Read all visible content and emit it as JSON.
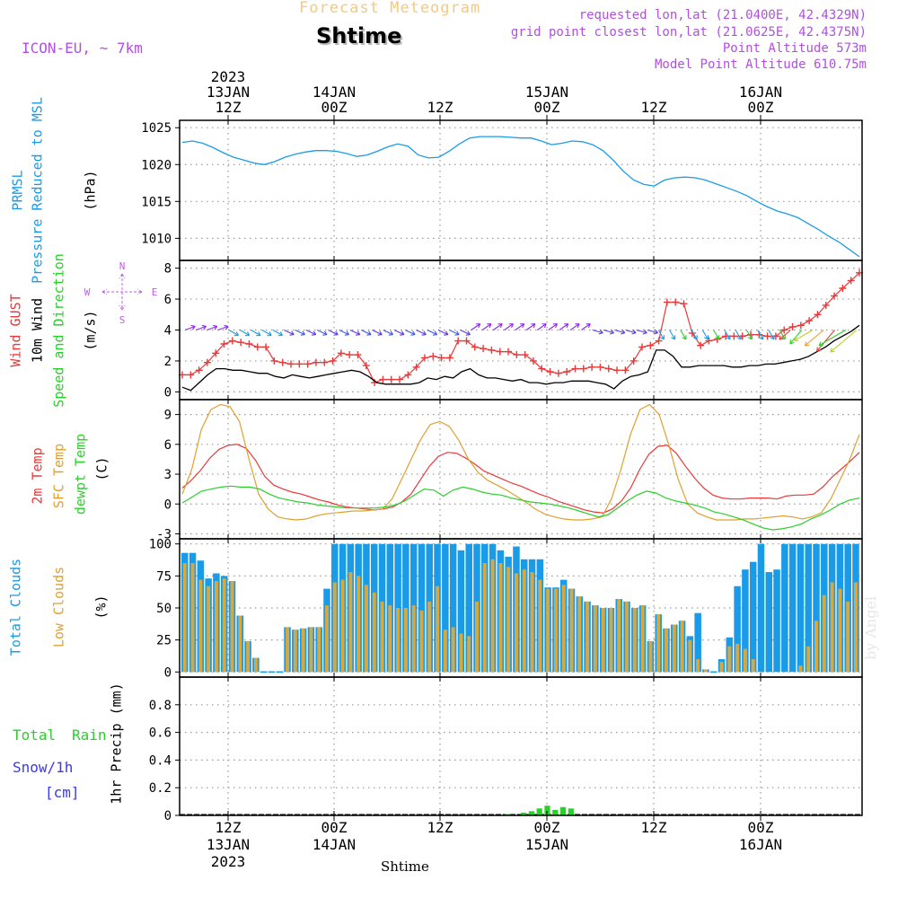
{
  "header": {
    "super_title": "Forecast Meteogram",
    "location_title": "Shtime",
    "model": "ICON-EU, ~ 7km",
    "requested": "requested lon,lat (21.0400E, 42.4329N)",
    "closest": "grid point closest lon,lat (21.0625E, 42.4375N)",
    "point_altitude": "Point Altitude 573m",
    "model_altitude": "Model Point Altitude 610.75m",
    "watermark": "by Angel",
    "footer_location": "Shtime"
  },
  "time_axis": {
    "top": [
      {
        "hour": "12Z",
        "date": "13JAN",
        "year": "2023"
      },
      {
        "hour": "00Z",
        "date": "14JAN",
        "year": ""
      },
      {
        "hour": "12Z",
        "date": "",
        "year": ""
      },
      {
        "hour": "00Z",
        "date": "15JAN",
        "year": ""
      },
      {
        "hour": "12Z",
        "date": "",
        "year": ""
      },
      {
        "hour": "00Z",
        "date": "16JAN",
        "year": ""
      }
    ],
    "bottom": [
      {
        "hour": "12Z",
        "date": "13JAN",
        "year": "2023"
      },
      {
        "hour": "00Z",
        "date": "14JAN",
        "year": ""
      },
      {
        "hour": "12Z",
        "date": "",
        "year": ""
      },
      {
        "hour": "00Z",
        "date": "15JAN",
        "year": ""
      },
      {
        "hour": "12Z",
        "date": "",
        "year": ""
      },
      {
        "hour": "00Z",
        "date": "16JAN",
        "year": ""
      }
    ]
  },
  "panels": {
    "pressure": {
      "label1": "PRMSL",
      "label2": "Pressure Reduced to MSL",
      "unit": "(hPa)"
    },
    "wind": {
      "label1": "Wind GUST",
      "label2": "10m Wind",
      "label3": "Speed and Direction",
      "unit": "(m/s)",
      "compass_n": "N",
      "compass_s": "S",
      "compass_w": "W",
      "compass_e": "E"
    },
    "temp": {
      "label1": "2m Temp",
      "label2": "SFC Temp",
      "label3": "dewpt Temp",
      "unit": "(C)"
    },
    "clouds": {
      "label1": "Total Clouds",
      "label2": "Low Clouds",
      "unit": "(%)"
    },
    "precip": {
      "label1": "Total",
      "label2": "Rain",
      "label3": "Snow/1h",
      "label4": "[cm]",
      "unit": "1hr Precip (mm)"
    }
  },
  "chart_data": [
    {
      "type": "line",
      "title": "PRMSL Pressure Reduced to MSL",
      "ylabel": "(hPa)",
      "x_hours_from_13JAN_00Z": [
        6,
        78
      ],
      "ylim": [
        1007,
        1026
      ],
      "yticks": [
        "1025",
        "1020",
        "1015",
        "1010"
      ],
      "series": [
        {
          "name": "PRMSL",
          "color": "#1a9be8",
          "values": [
            1023.0,
            1023.2,
            1022.9,
            1022.3,
            1021.6,
            1021.0,
            1020.6,
            1020.2,
            1020.0,
            1020.4,
            1021.0,
            1021.4,
            1021.7,
            1021.9,
            1021.9,
            1021.8,
            1021.5,
            1021.1,
            1021.3,
            1021.8,
            1022.4,
            1022.8,
            1022.5,
            1021.3,
            1020.9,
            1021.0,
            1021.8,
            1022.8,
            1023.6,
            1023.8,
            1023.8,
            1023.8,
            1023.7,
            1023.6,
            1023.6,
            1023.2,
            1022.7,
            1022.9,
            1023.2,
            1023.1,
            1022.7,
            1021.9,
            1020.6,
            1019.1,
            1017.9,
            1017.3,
            1017.1,
            1017.9,
            1018.2,
            1018.3,
            1018.2,
            1017.9,
            1017.4,
            1016.9,
            1016.4,
            1015.8,
            1015.0,
            1014.3,
            1013.7,
            1013.3,
            1012.8,
            1012.0,
            1011.2,
            1010.3,
            1009.5,
            1008.5,
            1007.5
          ]
        }
      ]
    },
    {
      "type": "line",
      "title": "Wind GUST / 10m Wind Speed and Direction",
      "ylabel": "(m/s)",
      "ylim": [
        -0.5,
        8.5
      ],
      "yticks": [
        "8",
        "6",
        "4",
        "2",
        "0"
      ],
      "series": [
        {
          "name": "Wind GUST",
          "color": "#e83a3a",
          "values": [
            1.1,
            1.1,
            1.4,
            1.9,
            2.5,
            3.1,
            3.3,
            3.2,
            3.1,
            2.9,
            2.9,
            2.0,
            1.9,
            1.8,
            1.8,
            1.8,
            1.9,
            1.9,
            2.0,
            2.5,
            2.4,
            2.4,
            1.7,
            0.6,
            0.8,
            0.8,
            0.8,
            1.1,
            1.6,
            2.2,
            2.3,
            2.2,
            2.2,
            3.3,
            3.3,
            2.9,
            2.8,
            2.7,
            2.6,
            2.6,
            2.4,
            2.4,
            2.0,
            1.5,
            1.3,
            1.2,
            1.3,
            1.5,
            1.5,
            1.6,
            1.6,
            1.5,
            1.4,
            1.4,
            2.0,
            2.9,
            3.0,
            3.3,
            5.8,
            5.8,
            5.7,
            3.8,
            3.0,
            3.3,
            3.4,
            3.6,
            3.6,
            3.6,
            3.7,
            3.7,
            3.6,
            3.6,
            4.0,
            4.2,
            4.3,
            4.6,
            5.0,
            5.6,
            6.2,
            6.7,
            7.2,
            7.7
          ]
        },
        {
          "name": "10m Wind",
          "color": "#000000",
          "values": [
            0.3,
            0.1,
            0.6,
            1.1,
            1.5,
            1.5,
            1.4,
            1.4,
            1.3,
            1.2,
            1.2,
            1.0,
            0.9,
            1.1,
            1.0,
            0.9,
            1.0,
            1.1,
            1.2,
            1.3,
            1.4,
            1.3,
            1.0,
            0.6,
            0.5,
            0.5,
            0.5,
            0.5,
            0.6,
            0.9,
            0.8,
            1.0,
            0.9,
            1.3,
            1.5,
            1.1,
            0.9,
            0.9,
            0.8,
            0.7,
            0.8,
            0.6,
            0.6,
            0.5,
            0.6,
            0.6,
            0.7,
            0.7,
            0.7,
            0.6,
            0.5,
            0.2,
            0.7,
            1.0,
            1.1,
            1.3,
            2.7,
            2.7,
            2.3,
            1.6,
            1.6,
            1.7,
            1.7,
            1.7,
            1.7,
            1.6,
            1.6,
            1.7,
            1.7,
            1.8,
            1.8,
            1.9,
            2.0,
            2.1,
            2.3,
            2.6,
            2.9,
            3.3,
            3.6,
            3.9,
            4.3
          ]
        }
      ]
    },
    {
      "type": "line",
      "title": "2m Temp / SFC Temp / dewpt Temp",
      "ylabel": "(C)",
      "ylim": [
        -3.5,
        10.5
      ],
      "yticks": [
        "9",
        "6",
        "3",
        "0",
        "-3"
      ],
      "series": [
        {
          "name": "2m Temp",
          "color": "#e83a3a",
          "values": [
            1.6,
            2.4,
            3.4,
            4.6,
            5.5,
            5.9,
            6.0,
            5.6,
            4.4,
            2.8,
            1.9,
            1.5,
            1.2,
            1.0,
            0.7,
            0.4,
            0.2,
            -0.1,
            -0.3,
            -0.4,
            -0.5,
            -0.6,
            -0.5,
            -0.3,
            0.2,
            1.0,
            2.4,
            3.8,
            4.8,
            5.2,
            5.1,
            4.6,
            4.0,
            3.3,
            2.9,
            2.5,
            2.1,
            1.8,
            1.4,
            1.0,
            0.7,
            0.3,
            0.0,
            -0.3,
            -0.6,
            -0.8,
            -0.9,
            -0.5,
            0.3,
            1.6,
            3.5,
            5.0,
            5.8,
            5.9,
            5.1,
            3.8,
            2.6,
            1.6,
            0.9,
            0.6,
            0.5,
            0.5,
            0.6,
            0.6,
            0.6,
            0.5,
            0.8,
            0.9,
            0.9,
            1.0,
            1.7,
            2.7,
            3.5,
            4.3,
            5.2
          ]
        },
        {
          "name": "SFC Temp",
          "color": "#e0a030",
          "values": [
            1.0,
            3.5,
            7.5,
            9.5,
            10.0,
            9.8,
            8.3,
            4.5,
            1.0,
            -0.5,
            -1.3,
            -1.5,
            -1.6,
            -1.5,
            -1.2,
            -1.0,
            -0.9,
            -0.8,
            -0.7,
            -0.7,
            -0.6,
            -0.5,
            0.5,
            2.5,
            4.5,
            6.5,
            8.0,
            8.3,
            7.8,
            6.4,
            4.5,
            3.2,
            2.4,
            1.9,
            1.4,
            0.8,
            0.2,
            -0.5,
            -1.0,
            -1.3,
            -1.5,
            -1.6,
            -1.6,
            -1.5,
            -1.3,
            0.5,
            3.5,
            7.0,
            9.5,
            10.0,
            9.0,
            6.0,
            2.5,
            0.0,
            -0.9,
            -1.3,
            -1.6,
            -1.6,
            -1.6,
            -1.5,
            -1.5,
            -1.4,
            -1.3,
            -1.2,
            -1.3,
            -1.5,
            -1.3,
            -0.9,
            0.5,
            2.5,
            4.5,
            7.0
          ]
        },
        {
          "name": "dewpt Temp",
          "color": "#2ad02a",
          "values": [
            0.1,
            0.7,
            1.3,
            1.5,
            1.7,
            1.8,
            1.7,
            1.7,
            1.5,
            1.0,
            0.6,
            0.4,
            0.2,
            0.1,
            -0.1,
            -0.2,
            -0.3,
            -0.4,
            -0.4,
            -0.4,
            -0.4,
            -0.3,
            -0.1,
            0.3,
            0.9,
            1.5,
            1.4,
            0.8,
            1.4,
            1.7,
            1.5,
            1.2,
            1.0,
            0.9,
            0.6,
            0.4,
            0.2,
            0.1,
            0.0,
            -0.2,
            -0.4,
            -0.7,
            -1.0,
            -1.3,
            -1.1,
            -0.4,
            0.3,
            0.9,
            1.3,
            1.1,
            0.6,
            0.3,
            0.1,
            -0.1,
            -0.4,
            -0.8,
            -1.0,
            -1.3,
            -1.6,
            -2.0,
            -2.4,
            -2.6,
            -2.5,
            -2.3,
            -2.0,
            -1.5,
            -1.1,
            -0.6,
            0.0,
            0.4,
            0.6
          ]
        }
      ]
    },
    {
      "type": "bar",
      "title": "Total Clouds / Low Clouds",
      "ylabel": "(%)",
      "ylim": [
        -4,
        104
      ],
      "yticks": [
        "100",
        "75",
        "50",
        "25",
        "0"
      ],
      "series": [
        {
          "name": "Total Clouds",
          "color": "#1a9be8",
          "values": [
            93,
            93,
            87,
            73,
            77,
            75,
            71,
            44,
            24,
            11,
            0,
            0,
            0,
            35,
            33,
            34,
            35,
            35,
            65,
            100,
            100,
            100,
            100,
            100,
            100,
            100,
            100,
            100,
            100,
            100,
            100,
            100,
            100,
            100,
            100,
            95,
            100,
            100,
            100,
            100,
            95,
            90,
            98,
            88,
            88,
            88,
            66,
            66,
            72,
            65,
            59,
            55,
            52,
            50,
            50,
            57,
            55,
            50,
            52,
            24,
            45,
            34,
            37,
            40,
            28,
            46,
            2,
            0,
            10,
            27,
            67,
            80,
            86,
            100,
            78,
            80,
            100,
            100,
            100,
            100,
            100,
            100,
            100,
            100,
            100,
            100
          ]
        },
        {
          "name": "Low Clouds",
          "color": "#d8a840",
          "values": [
            85,
            85,
            72,
            67,
            71,
            73,
            71,
            44,
            24,
            11,
            0,
            0,
            0,
            35,
            33,
            34,
            35,
            35,
            52,
            70,
            72,
            78,
            75,
            68,
            62,
            55,
            52,
            50,
            50,
            52,
            48,
            55,
            67,
            33,
            35,
            30,
            28,
            55,
            85,
            88,
            85,
            82,
            77,
            80,
            78,
            72,
            65,
            65,
            68,
            65,
            59,
            55,
            52,
            50,
            50,
            57,
            55,
            50,
            52,
            24,
            45,
            34,
            37,
            40,
            25,
            10,
            2,
            0,
            8,
            20,
            22,
            18,
            10,
            0,
            0,
            0,
            0,
            0,
            5,
            20,
            40,
            60,
            70,
            65,
            55,
            70
          ]
        }
      ]
    },
    {
      "type": "bar",
      "title": "1hr Precip",
      "ylabel": "1hr Precip (mm)",
      "ylim": [
        0,
        1.0
      ],
      "yticks": [
        "0.8",
        "0.6",
        "0.4",
        "0.2",
        "0"
      ],
      "series": [
        {
          "name": "Total Rain",
          "color": "#2ad02a",
          "values": [
            0,
            0,
            0,
            0,
            0,
            0,
            0,
            0,
            0,
            0,
            0,
            0,
            0,
            0,
            0,
            0,
            0,
            0,
            0,
            0,
            0,
            0,
            0,
            0,
            0,
            0,
            0,
            0,
            0,
            0,
            0,
            0,
            0,
            0,
            0,
            0,
            0,
            0,
            0,
            0,
            0,
            0.01,
            0,
            0.02,
            0.03,
            0.05,
            0.07,
            0.04,
            0.06,
            0.05,
            0,
            0,
            0,
            0,
            0,
            0,
            0,
            0,
            0,
            0,
            0,
            0,
            0,
            0,
            0,
            0,
            0,
            0,
            0,
            0,
            0,
            0,
            0,
            0,
            0,
            0,
            0,
            0,
            0,
            0,
            0,
            0,
            0,
            0,
            0,
            0
          ]
        },
        {
          "name": "Snow/1h",
          "color": "#3a3ae8",
          "values": []
        }
      ]
    }
  ]
}
